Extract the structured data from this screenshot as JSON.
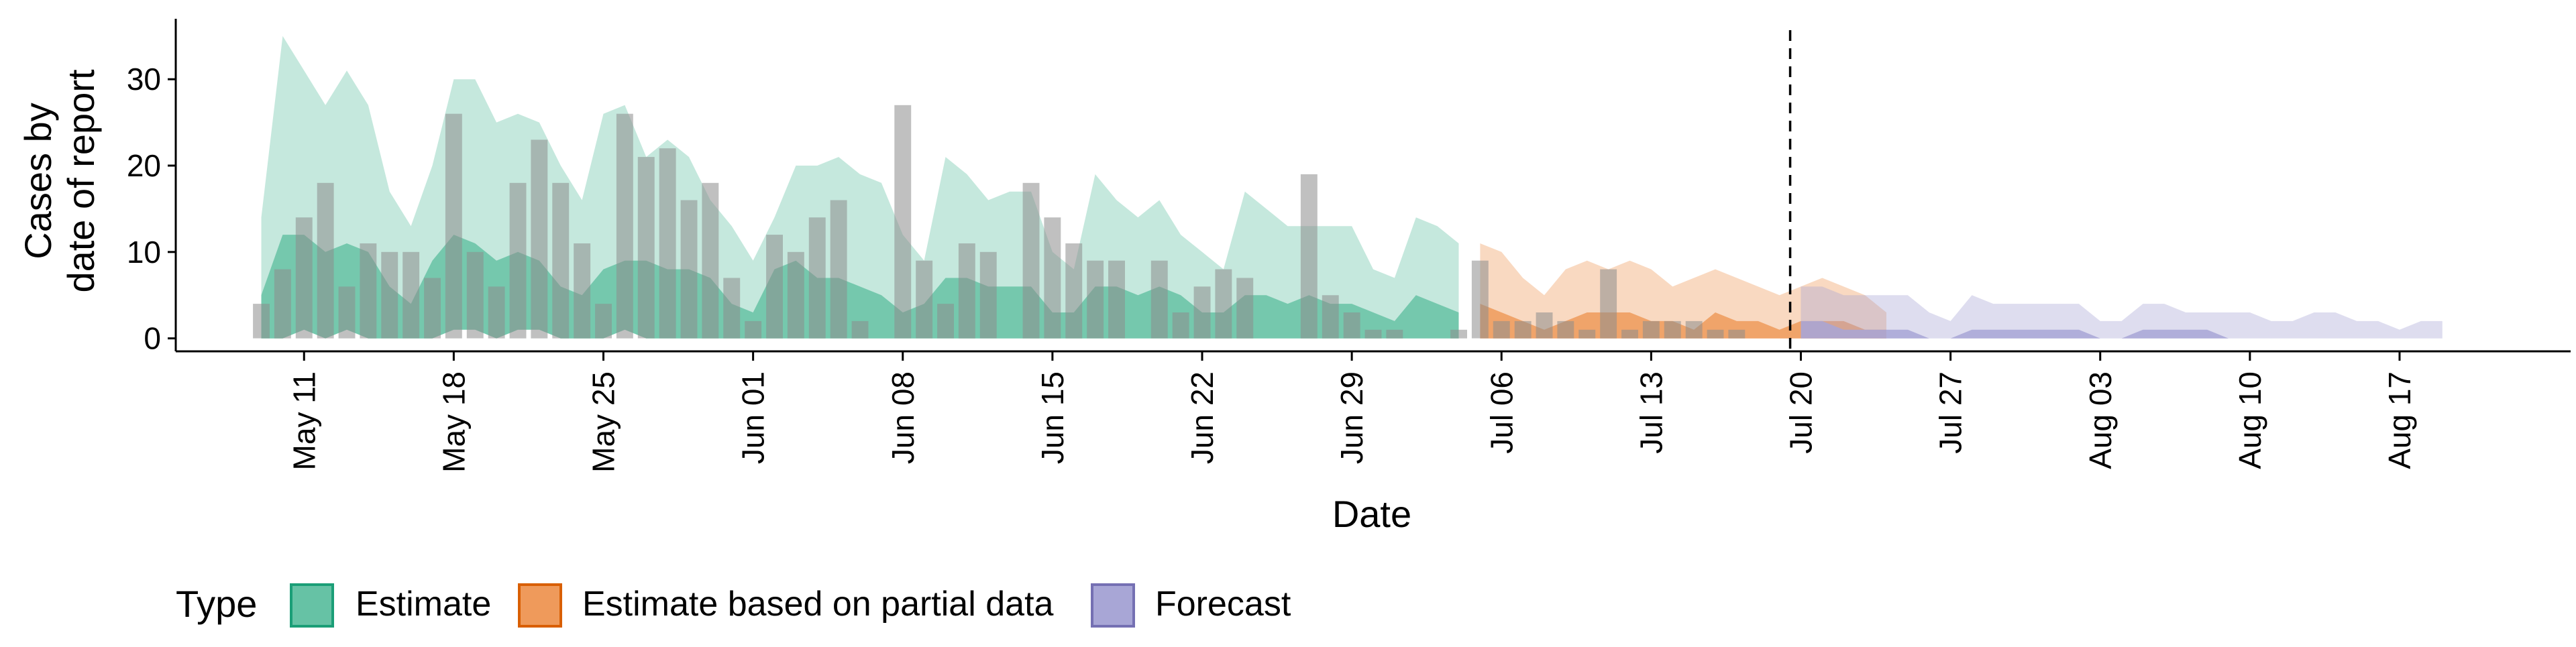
{
  "chart_data": {
    "type": "area",
    "ylabel_lines": [
      "Cases by",
      "date of report"
    ],
    "xlabel": "Date",
    "legend": {
      "title": "Type",
      "position": "bottom",
      "items": [
        {
          "label": "Estimate",
          "fill": "#66c2a5",
          "stroke": "#1b9e77"
        },
        {
          "label": "Estimate based on partial data",
          "fill": "#ef9a5b",
          "stroke": "#d95f02"
        },
        {
          "label": "Forecast",
          "fill": "#a8a6d6",
          "stroke": "#7570b3"
        }
      ]
    },
    "colors": {
      "reported_bars": "#8c8c8c",
      "vline": "#000000"
    },
    "x_range": [
      "2020-05-05",
      "2020-08-25"
    ],
    "ylim": [
      -1.5,
      37
    ],
    "y_ticks": [
      0,
      10,
      20,
      30
    ],
    "x_ticks": [
      {
        "date": "2020-05-11",
        "label": "May 11"
      },
      {
        "date": "2020-05-18",
        "label": "May 18"
      },
      {
        "date": "2020-05-25",
        "label": "May 25"
      },
      {
        "date": "2020-06-01",
        "label": "Jun 01"
      },
      {
        "date": "2020-06-08",
        "label": "Jun 08"
      },
      {
        "date": "2020-06-15",
        "label": "Jun 15"
      },
      {
        "date": "2020-06-22",
        "label": "Jun 22"
      },
      {
        "date": "2020-06-29",
        "label": "Jun 29"
      },
      {
        "date": "2020-07-06",
        "label": "Jul 06"
      },
      {
        "date": "2020-07-13",
        "label": "Jul 13"
      },
      {
        "date": "2020-07-20",
        "label": "Jul 20"
      },
      {
        "date": "2020-07-27",
        "label": "Jul 27"
      },
      {
        "date": "2020-08-03",
        "label": "Aug 03"
      },
      {
        "date": "2020-08-10",
        "label": "Aug 10"
      },
      {
        "date": "2020-08-17",
        "label": "Aug 17"
      }
    ],
    "vline_date": "2020-07-19",
    "reported_cases": {
      "start_date": "2020-05-09",
      "values": [
        4,
        8,
        14,
        18,
        6,
        11,
        10,
        10,
        7,
        26,
        10,
        6,
        18,
        23,
        18,
        11,
        4,
        26,
        21,
        22,
        16,
        18,
        7,
        2,
        12,
        10,
        14,
        16,
        2,
        0,
        27,
        9,
        4,
        11,
        10,
        0,
        18,
        14,
        11,
        9,
        9,
        0,
        9,
        3,
        6,
        8,
        7,
        0,
        0,
        19,
        5,
        3,
        1,
        1,
        0,
        0,
        1,
        9,
        2,
        2,
        3,
        2,
        1,
        8,
        1,
        2,
        2,
        2,
        1,
        1
      ]
    },
    "series": [
      {
        "name": "Estimate",
        "start_date": "2020-05-09",
        "upper": [
          14,
          35,
          31,
          27,
          31,
          27,
          17,
          13,
          20,
          30,
          30,
          25,
          26,
          25,
          20,
          16,
          26,
          27,
          21,
          23,
          21,
          16,
          13,
          9,
          14,
          20,
          20,
          21,
          19,
          18,
          12,
          9,
          21,
          19,
          16,
          17,
          17,
          10,
          8,
          19,
          16,
          14,
          16,
          12,
          10,
          8,
          17,
          15,
          13,
          13,
          13,
          13,
          8,
          7,
          14,
          13,
          11
        ],
        "median": [
          5,
          12,
          12,
          10,
          11,
          10,
          6,
          4,
          9,
          12,
          11,
          9,
          10,
          9,
          6,
          5,
          8,
          9,
          9,
          8,
          8,
          7,
          4,
          3,
          8,
          9,
          7,
          7,
          6,
          5,
          3,
          4,
          7,
          7,
          6,
          6,
          6,
          3,
          3,
          6,
          6,
          5,
          6,
          5,
          3,
          3,
          5,
          5,
          4,
          5,
          4,
          4,
          3,
          2,
          5,
          4,
          3
        ],
        "lower": [
          0,
          0,
          1,
          0,
          1,
          0,
          0,
          0,
          0,
          1,
          1,
          0,
          1,
          1,
          0,
          0,
          0,
          1,
          0,
          0,
          0,
          0,
          0,
          0,
          0,
          0,
          0,
          0,
          0,
          0,
          0,
          0,
          0,
          0,
          0,
          0,
          0,
          0,
          0,
          0,
          0,
          0,
          0,
          0,
          0,
          0,
          0,
          0,
          0,
          0,
          0,
          0,
          0,
          0,
          0,
          0,
          0
        ]
      },
      {
        "name": "Estimate based on partial data",
        "start_date": "2020-07-05",
        "upper": [
          11,
          10,
          7,
          5,
          8,
          9,
          8,
          9,
          8,
          6,
          7,
          8,
          7,
          6,
          5,
          6,
          7,
          6,
          5,
          3
        ],
        "median": [
          4,
          3,
          2,
          1,
          2,
          3,
          3,
          3,
          2,
          2,
          1,
          3,
          2,
          2,
          1,
          2,
          2,
          2,
          1,
          1
        ],
        "lower": [
          0,
          0,
          0,
          0,
          0,
          0,
          0,
          0,
          0,
          0,
          0,
          0,
          0,
          0,
          0,
          0,
          0,
          0,
          0,
          0
        ]
      },
      {
        "name": "Forecast",
        "start_date": "2020-07-20",
        "upper": [
          6,
          6,
          5,
          5,
          5,
          5,
          3,
          2,
          5,
          4,
          4,
          4,
          4,
          4,
          2,
          2,
          4,
          4,
          3,
          3,
          3,
          3,
          2,
          2,
          3,
          3,
          2,
          2,
          1,
          2,
          2
        ],
        "median": [
          2,
          2,
          1,
          1,
          1,
          1,
          0,
          0,
          1,
          1,
          1,
          1,
          1,
          1,
          0,
          0,
          1,
          1,
          1,
          1,
          0,
          0,
          0,
          0,
          0,
          0,
          0,
          0,
          0,
          0,
          0
        ],
        "lower": [
          0,
          0,
          0,
          0,
          0,
          0,
          0,
          0,
          0,
          0,
          0,
          0,
          0,
          0,
          0,
          0,
          0,
          0,
          0,
          0,
          0,
          0,
          0,
          0,
          0,
          0,
          0,
          0,
          0,
          0,
          0
        ]
      }
    ]
  }
}
